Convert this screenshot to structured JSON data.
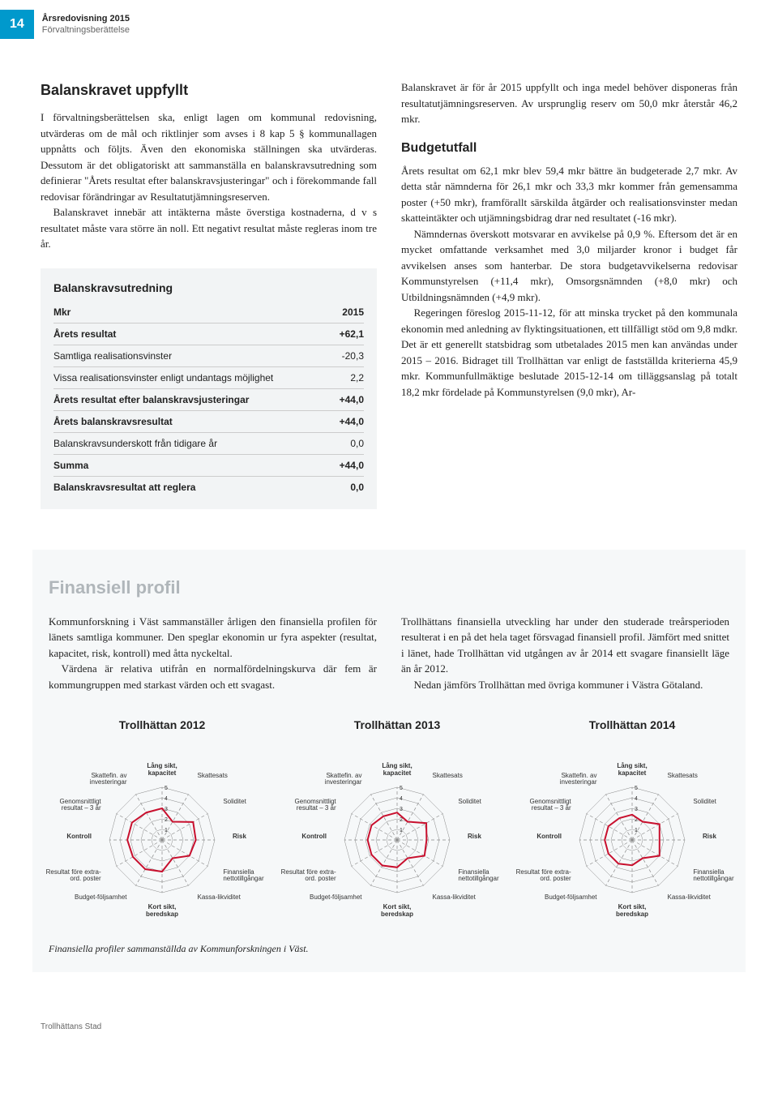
{
  "page_number": "14",
  "header_title": "Årsredovisning 2015",
  "header_sub": "Förvaltningsberättelse",
  "left": {
    "title": "Balanskravet uppfyllt",
    "p1": "I förvaltningsberättelsen ska, enligt lagen om kommunal redovisning, utvärderas om de mål och riktlinjer som avses i 8 kap 5 § kommunallagen uppnåtts och följts. Även den ekonomiska ställningen ska utvärderas. Dessutom är det obligatoriskt att sammanställa en balanskravsutredning som definierar \"Årets resultat efter balanskravsjusteringar\" och i förekommande fall redovisar förändringar av Resultatutjämningsreserven.",
    "p2": "Balanskravet innebär att intäkterna måste överstiga kostnaderna, d v s resultatet måste vara större än noll. Ett negativt resultat måste regleras inom tre år."
  },
  "table": {
    "title": "Balanskravsutredning",
    "col1": "Mkr",
    "col2": "2015",
    "rows": [
      {
        "label": "Årets resultat",
        "value": "+62,1",
        "bold": true
      },
      {
        "label": "Samtliga realisationsvinster",
        "value": "-20,3"
      },
      {
        "label": "Vissa realisationsvinster enligt undantags möjlighet",
        "value": "2,2"
      },
      {
        "label": "Årets resultat efter balanskravsjusteringar",
        "value": "+44,0",
        "bold": true
      },
      {
        "label": "Årets balanskravsresultat",
        "value": "+44,0",
        "bold": true
      },
      {
        "label": "Balanskravsunderskott från tidigare år",
        "value": "0,0"
      },
      {
        "label": "Summa",
        "value": "+44,0",
        "bold": true
      },
      {
        "label": "Balanskravsresultat att reglera",
        "value": "0,0",
        "bold": true
      }
    ]
  },
  "right": {
    "p1": "Balanskravet är för år 2015 uppfyllt och inga medel behöver disponeras från resultatutjämningsreserven. Av ursprunglig reserv om 50,0 mkr återstår 46,2 mkr.",
    "sub_title": "Budgetutfall",
    "p2": "Årets resultat om 62,1 mkr blev 59,4 mkr bättre än budgeterade 2,7 mkr. Av detta står nämnderna för 26,1 mkr och 33,3 mkr kommer från gemensamma poster (+50 mkr), framförallt särskilda åtgärder och realisationsvinster medan skatteintäkter och utjämningsbidrag drar ned resultatet (-16 mkr).",
    "p3": "Nämndernas överskott motsvarar en avvikelse på 0,9 %. Eftersom det är en mycket omfattande verksamhet med 3,0 miljarder kronor i budget får avvikelsen anses som hanterbar. De stora budgetavvikelserna redovisar Kommunstyrelsen (+11,4 mkr), Omsorgsnämnden (+8,0 mkr) och Utbildningsnämnden (+4,9 mkr).",
    "p4": "Regeringen föreslog 2015-11-12, för att minska trycket på den kommunala ekonomin med anledning av flyktingsituationen, ett tillfälligt stöd om 9,8 mdkr. Det är ett generellt statsbidrag som utbetalades 2015 men kan användas under 2015 – 2016. Bidraget till Trollhättan var enligt de fastställda kriterierna 45,9 mkr. Kommunfullmäktige beslutade 2015-12-14 om tilläggsanslag på totalt 18,2 mkr fördelade på Kommunstyrelsen (9,0 mkr), Ar-"
  },
  "profile": {
    "title": "Finansiell profil",
    "left_p1": "Kommunforskning i Väst sammanställer årligen den finansiella profilen för länets samtliga kommuner. Den speglar ekonomin ur fyra aspekter (resultat, kapacitet, risk, kontroll) med åtta nyckeltal.",
    "left_p2": "Värdena är relativa utifrån en normalfördelningskurva där fem är kommungruppen med starkast värden och ett svagast.",
    "right_p1": "Trollhättans finansiella utveckling har under den studerade treårsperioden resulterat i en på det hela taget försvagad finansiell profil. Jämfört med snittet i länet, hade Trollhättan vid utgången av år 2014 ett svagare finansiellt läge än år 2012.",
    "right_p2": "Nedan jämförs Trollhättan med övriga kommuner i Västra Götaland."
  },
  "charts": [
    {
      "title": "Trollhättan 2012",
      "type": "radar",
      "axes": [
        "Lång sikt, kapacitet",
        "Skattesats",
        "Soliditet",
        "Risk",
        "Finansiella nettotillgångar",
        "Kassa-likviditet",
        "Kort sikt, beredskap",
        "Budget-följsamhet",
        "Resultat före extra-ord. poster",
        "Kontroll",
        "Genomsnittligt resultat – 3 år",
        "Skattefin. av investeringar"
      ],
      "scale_max": 5,
      "tick_labels": [
        "1",
        "2",
        "3",
        "4",
        "5"
      ],
      "values": [
        3.0,
        2.0,
        3.4,
        3.2,
        3.0,
        2.0,
        3.0,
        3.2,
        3.2,
        3.3,
        3.3,
        3.0
      ],
      "line_color": "#c8102e",
      "line_width": 2,
      "grid_color": "#888888",
      "axis_dash": "4,3",
      "fill": "none",
      "background_color": "#f6f8f9",
      "label_fontsize": 8
    },
    {
      "title": "Trollhättan 2013",
      "type": "radar",
      "axes": [
        "Lång sikt, kapacitet",
        "Skattesats",
        "Soliditet",
        "Risk",
        "Finansiella nettotillgångar",
        "Kassa-likviditet",
        "Kort sikt, beredskap",
        "Budget-följsamhet",
        "Resultat före extra-ord. poster",
        "Kontroll",
        "Genomsnittligt resultat – 3 år",
        "Skattefin. av investeringar"
      ],
      "scale_max": 5,
      "tick_labels": [
        "1",
        "2",
        "3",
        "4",
        "5"
      ],
      "values": [
        2.6,
        2.0,
        3.2,
        2.8,
        3.0,
        2.0,
        2.6,
        2.8,
        2.8,
        2.8,
        2.8,
        2.6
      ],
      "line_color": "#c8102e",
      "line_width": 2,
      "grid_color": "#888888",
      "axis_dash": "4,3",
      "fill": "none",
      "background_color": "#f6f8f9",
      "label_fontsize": 8
    },
    {
      "title": "Trollhättan 2014",
      "type": "radar",
      "axes": [
        "Lång sikt, kapacitet",
        "Skattesats",
        "Soliditet",
        "Risk",
        "Finansiella nettotillgångar",
        "Kassa-likviditet",
        "Kort sikt, beredskap",
        "Budget-följsamhet",
        "Resultat före extra-ord. poster",
        "Kontroll",
        "Genomsnittligt resultat – 3 år",
        "Skattefin. av investeringar"
      ],
      "scale_max": 5,
      "tick_labels": [
        "1",
        "2",
        "3",
        "4",
        "5"
      ],
      "values": [
        2.4,
        2.0,
        3.0,
        2.6,
        3.0,
        2.0,
        2.4,
        2.6,
        2.6,
        2.6,
        2.6,
        2.4
      ],
      "line_color": "#c8102e",
      "line_width": 2,
      "grid_color": "#888888",
      "axis_dash": "4,3",
      "fill": "none",
      "background_color": "#f6f8f9",
      "label_fontsize": 8
    }
  ],
  "footnote": "Finansiella profiler sammanställda av Kommunforskningen i Väst.",
  "footer": "Trollhättans Stad"
}
